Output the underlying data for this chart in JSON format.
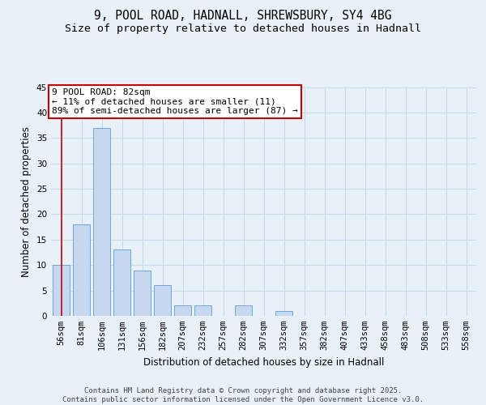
{
  "title_line1": "9, POOL ROAD, HADNALL, SHREWSBURY, SY4 4BG",
  "title_line2": "Size of property relative to detached houses in Hadnall",
  "xlabel": "Distribution of detached houses by size in Hadnall",
  "ylabel": "Number of detached properties",
  "categories": [
    "56sqm",
    "81sqm",
    "106sqm",
    "131sqm",
    "156sqm",
    "182sqm",
    "207sqm",
    "232sqm",
    "257sqm",
    "282sqm",
    "307sqm",
    "332sqm",
    "357sqm",
    "382sqm",
    "407sqm",
    "433sqm",
    "458sqm",
    "483sqm",
    "508sqm",
    "533sqm",
    "558sqm"
  ],
  "values": [
    10,
    18,
    37,
    13,
    9,
    6,
    2,
    2,
    0,
    2,
    0,
    1,
    0,
    0,
    0,
    0,
    0,
    0,
    0,
    0,
    0
  ],
  "bar_color": "#c5d8f0",
  "bar_edge_color": "#5a9fd4",
  "grid_color": "#c8d8e8",
  "background_color": "#e8f0f8",
  "annotation_box_text": "9 POOL ROAD: 82sqm\n← 11% of detached houses are smaller (11)\n89% of semi-detached houses are larger (87) →",
  "annotation_box_color": "#ffffff",
  "annotation_box_edge_color": "#cc0000",
  "ref_line_color": "#cc0000",
  "ylim": [
    0,
    45
  ],
  "yticks": [
    0,
    5,
    10,
    15,
    20,
    25,
    30,
    35,
    40,
    45
  ],
  "footer_text": "Contains HM Land Registry data © Crown copyright and database right 2025.\nContains public sector information licensed under the Open Government Licence v3.0.",
  "title_fontsize": 10.5,
  "subtitle_fontsize": 9.5,
  "axis_label_fontsize": 8.5,
  "tick_fontsize": 7.5,
  "annotation_fontsize": 8,
  "footer_fontsize": 6.5
}
